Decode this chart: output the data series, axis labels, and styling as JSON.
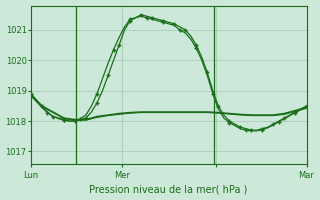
{
  "bg_color": "#cce8d8",
  "grid_color": "#aaccbb",
  "line_color": "#1a6e1a",
  "tick_color": "#1a6e1a",
  "label_color": "#1a6e1a",
  "xlabel": "Pression niveau de la mer( hPa )",
  "ylim": [
    1016.6,
    1021.8
  ],
  "yticks": [
    1017,
    1018,
    1019,
    1020,
    1021
  ],
  "xtick_positions": [
    0,
    0.33,
    0.67,
    1.0
  ],
  "xtick_labels": [
    "Lun",
    "Mer",
    "",
    "Mar"
  ],
  "vline_x": [
    0.165,
    0.665
  ],
  "line1_x": [
    0.0,
    0.02,
    0.04,
    0.06,
    0.08,
    0.1,
    0.12,
    0.14,
    0.16,
    0.18,
    0.2,
    0.22,
    0.24,
    0.26,
    0.28,
    0.3,
    0.32,
    0.34,
    0.36,
    0.38,
    0.4,
    0.42,
    0.44,
    0.46,
    0.48,
    0.5,
    0.52,
    0.54,
    0.56,
    0.58,
    0.6,
    0.62,
    0.64,
    0.66,
    0.68,
    0.7,
    0.72,
    0.74,
    0.76,
    0.78,
    0.8,
    0.82,
    0.84,
    0.86,
    0.88,
    0.9,
    0.92,
    0.94,
    0.96,
    0.98,
    1.0
  ],
  "line1_y": [
    1018.9,
    1018.7,
    1018.5,
    1018.3,
    1018.15,
    1018.1,
    1018.05,
    1018.0,
    1018.0,
    1018.05,
    1018.1,
    1018.3,
    1018.6,
    1019.0,
    1019.5,
    1020.0,
    1020.5,
    1021.0,
    1021.3,
    1021.4,
    1021.5,
    1021.45,
    1021.4,
    1021.35,
    1021.3,
    1021.25,
    1021.2,
    1021.1,
    1021.0,
    1020.8,
    1020.5,
    1020.1,
    1019.6,
    1019.0,
    1018.5,
    1018.2,
    1018.0,
    1017.9,
    1017.8,
    1017.75,
    1017.7,
    1017.7,
    1017.75,
    1017.8,
    1017.9,
    1018.0,
    1018.1,
    1018.2,
    1018.3,
    1018.4,
    1018.5
  ],
  "line2_x": [
    0.0,
    0.02,
    0.04,
    0.06,
    0.08,
    0.1,
    0.12,
    0.14,
    0.16,
    0.18,
    0.2,
    0.22,
    0.24,
    0.26,
    0.28,
    0.3,
    0.32,
    0.34,
    0.36,
    0.38,
    0.4,
    0.42,
    0.44,
    0.46,
    0.48,
    0.5,
    0.52,
    0.54,
    0.56,
    0.58,
    0.6,
    0.62,
    0.64,
    0.66,
    0.68,
    0.7,
    0.72,
    0.74,
    0.76,
    0.78,
    0.8,
    0.82,
    0.84,
    0.86,
    0.88,
    0.9,
    0.92,
    0.94,
    0.96,
    0.98,
    1.0
  ],
  "line2_y": [
    1018.9,
    1018.65,
    1018.45,
    1018.28,
    1018.15,
    1018.08,
    1018.03,
    1018.0,
    1018.0,
    1018.08,
    1018.2,
    1018.5,
    1018.9,
    1019.4,
    1019.9,
    1020.35,
    1020.75,
    1021.1,
    1021.35,
    1021.4,
    1021.45,
    1021.4,
    1021.35,
    1021.3,
    1021.25,
    1021.2,
    1021.15,
    1021.0,
    1020.9,
    1020.7,
    1020.4,
    1020.0,
    1019.5,
    1018.9,
    1018.4,
    1018.1,
    1017.95,
    1017.85,
    1017.75,
    1017.7,
    1017.68,
    1017.68,
    1017.72,
    1017.78,
    1017.88,
    1017.98,
    1018.08,
    1018.18,
    1018.28,
    1018.38,
    1018.48
  ],
  "flat1_x": [
    0.0,
    0.04,
    0.08,
    0.12,
    0.16,
    0.2,
    0.24,
    0.28,
    0.32,
    0.36,
    0.4,
    0.44,
    0.48,
    0.52,
    0.56,
    0.6,
    0.64,
    0.68,
    0.72,
    0.76,
    0.8,
    0.84,
    0.88,
    0.92,
    0.96,
    1.0
  ],
  "flat1_y": [
    1018.85,
    1018.5,
    1018.3,
    1018.1,
    1018.05,
    1018.05,
    1018.15,
    1018.2,
    1018.25,
    1018.28,
    1018.3,
    1018.3,
    1018.3,
    1018.3,
    1018.3,
    1018.3,
    1018.3,
    1018.28,
    1018.25,
    1018.22,
    1018.2,
    1018.2,
    1018.2,
    1018.25,
    1018.35,
    1018.45
  ],
  "flat2_x": [
    0.0,
    0.04,
    0.08,
    0.12,
    0.16,
    0.2,
    0.24,
    0.28,
    0.32,
    0.36,
    0.4,
    0.44,
    0.48,
    0.52,
    0.56,
    0.6,
    0.64,
    0.68,
    0.72,
    0.76,
    0.8,
    0.84,
    0.88,
    0.92,
    0.96,
    1.0
  ],
  "flat2_y": [
    1018.82,
    1018.48,
    1018.28,
    1018.08,
    1018.03,
    1018.03,
    1018.12,
    1018.18,
    1018.22,
    1018.26,
    1018.28,
    1018.28,
    1018.28,
    1018.28,
    1018.28,
    1018.28,
    1018.28,
    1018.26,
    1018.23,
    1018.2,
    1018.18,
    1018.18,
    1018.18,
    1018.22,
    1018.32,
    1018.42
  ]
}
